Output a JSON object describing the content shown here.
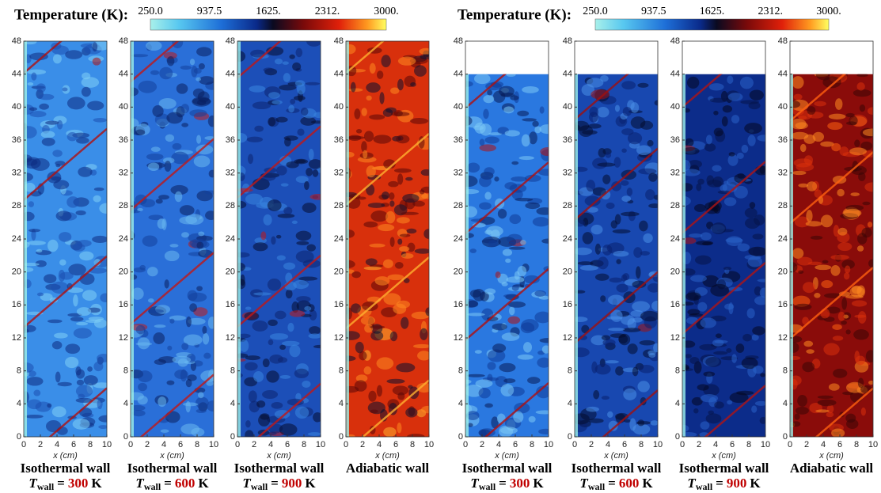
{
  "groups": [
    {
      "colorbar": {
        "label": "Temperature (K):",
        "ticks": [
          "250.0",
          "937.5",
          "1625.",
          "2312.",
          "3000."
        ]
      },
      "domain_top": 48,
      "panels": [
        {
          "title": "Isothermal wall",
          "symbol": "T",
          "subscript": "wall",
          "equals": "=",
          "value": "300",
          "unit": "K"
        },
        {
          "title": "Isothermal wall",
          "symbol": "T",
          "subscript": "wall",
          "equals": "=",
          "value": "600",
          "unit": "K"
        },
        {
          "title": "Isothermal wall",
          "symbol": "T",
          "subscript": "wall",
          "equals": "=",
          "value": "900",
          "unit": "K"
        },
        {
          "title": "Adiabatic wall"
        }
      ]
    },
    {
      "colorbar": {
        "label": "Temperature (K):",
        "ticks": [
          "250.0",
          "937.5",
          "1625.",
          "2312.",
          "3000."
        ]
      },
      "domain_top": 44,
      "panels": [
        {
          "title": "Isothermal wall",
          "symbol": "T",
          "subscript": "wall",
          "equals": "=",
          "value": "300",
          "unit": "K"
        },
        {
          "title": "Isothermal wall",
          "symbol": "T",
          "subscript": "wall",
          "equals": "=",
          "value": "600",
          "unit": "K"
        },
        {
          "title": "Isothermal wall",
          "symbol": "T",
          "subscript": "wall",
          "equals": "=",
          "value": "900",
          "unit": "K"
        },
        {
          "title": "Adiabatic wall"
        }
      ]
    }
  ],
  "yticks": [
    0,
    4,
    8,
    12,
    16,
    20,
    24,
    28,
    32,
    36,
    40,
    44,
    48
  ],
  "ylim": [
    0,
    48
  ],
  "xticks": [
    0,
    2,
    4,
    6,
    8,
    10
  ],
  "xlim": [
    0,
    10
  ],
  "x_label": "x (cm)"
}
